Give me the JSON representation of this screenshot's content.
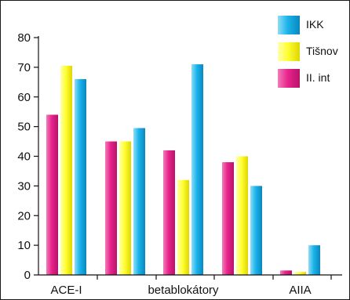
{
  "chart_data": {
    "type": "bar",
    "categories": [
      "ACE-I",
      "",
      "betablokátory",
      "",
      "AIIA"
    ],
    "series": [
      {
        "name": "II. int",
        "color": "#e8248c",
        "values": [
          54,
          45,
          42,
          38,
          1.5
        ]
      },
      {
        "name": "Tišnov",
        "color": "#ffff33",
        "values": [
          70.5,
          45,
          32,
          40,
          1
        ]
      },
      {
        "name": "IKK",
        "color": "#1ab4ea",
        "values": [
          66,
          49.5,
          71,
          30,
          10
        ]
      }
    ],
    "legend_order": [
      "IKK",
      "Tišnov",
      "II. int"
    ],
    "legend_position": "top-right",
    "y_ticks": [
      "0",
      "10",
      "20",
      "30",
      "40",
      "50",
      "60",
      "70",
      "80"
    ],
    "ylim": [
      0,
      80
    ],
    "grid": false,
    "title": "",
    "xlabel": "",
    "ylabel": ""
  }
}
